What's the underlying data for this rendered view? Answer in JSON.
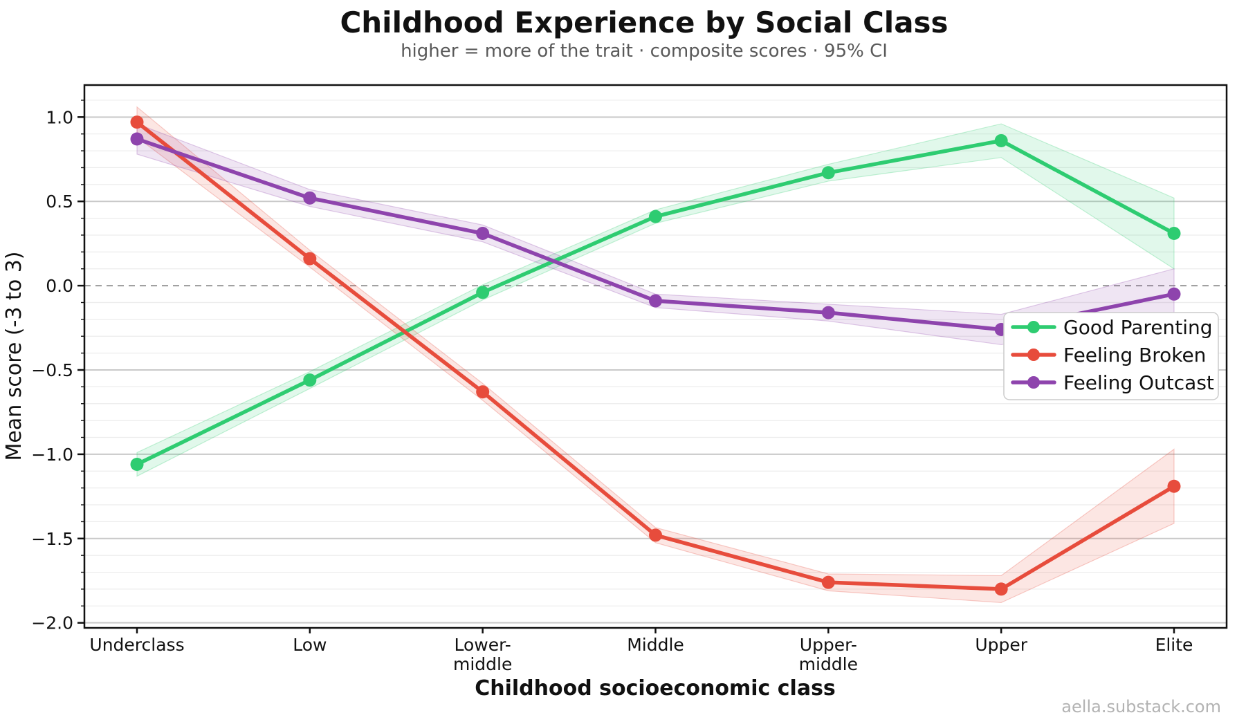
{
  "page": {
    "watermark": "aella.substack.com"
  },
  "chart_data": {
    "type": "line",
    "title": "Childhood Experience by Social Class",
    "subtitle": "higher = more of the trait · composite scores · 95% CI",
    "xlabel": "Childhood socioeconomic class",
    "ylabel": "Mean score (-3 to 3)",
    "categories": [
      "Underclass",
      "Low",
      "Lower-middle",
      "Middle",
      "Upper-middle",
      "Upper",
      "Elite"
    ],
    "category_label_lines": [
      [
        "Underclass"
      ],
      [
        "Low"
      ],
      [
        "Lower-",
        "middle"
      ],
      [
        "Middle"
      ],
      [
        "Upper-",
        "middle"
      ],
      [
        "Upper"
      ],
      [
        "Elite"
      ]
    ],
    "series": [
      {
        "name": "Good Parenting",
        "color": "#2ecc71",
        "values": [
          -1.06,
          -0.56,
          -0.04,
          0.41,
          0.67,
          0.86,
          0.31
        ],
        "ci_halfwidth": [
          0.07,
          0.05,
          0.045,
          0.04,
          0.05,
          0.1,
          0.21
        ]
      },
      {
        "name": "Feeling Broken",
        "color": "#e74c3c",
        "values": [
          0.97,
          0.16,
          -0.63,
          -1.48,
          -1.76,
          -1.8,
          -1.19
        ],
        "ci_halfwidth": [
          0.09,
          0.05,
          0.05,
          0.045,
          0.05,
          0.08,
          0.22
        ]
      },
      {
        "name": "Feeling Outcast",
        "color": "#8e44ad",
        "values": [
          0.87,
          0.52,
          0.31,
          -0.09,
          -0.16,
          -0.26,
          -0.05
        ],
        "ci_halfwidth": [
          0.09,
          0.05,
          0.05,
          0.04,
          0.05,
          0.09,
          0.15
        ]
      }
    ],
    "yticks": [
      1.0,
      0.5,
      0.0,
      -0.5,
      -1.0,
      -1.5,
      -2.0
    ],
    "ytick_labels": [
      "1.0",
      "0.5",
      "0.0",
      "−0.5",
      "−1.0",
      "−1.5",
      "−2.0"
    ],
    "ylim": [
      -2.03,
      1.19
    ],
    "minor_grid_step": 0.1,
    "major_grid_step": 0.5,
    "zero_line": true,
    "grid": true,
    "legend_position": "center-right",
    "colors": {
      "major_grid": "#c9c9c9",
      "minor_grid": "#ececec",
      "zero_line": "#999999",
      "spine": "#111111",
      "subtitle_text": "#595959",
      "watermark_text": "#b3b3b3",
      "legend_border": "#cccccc"
    }
  }
}
